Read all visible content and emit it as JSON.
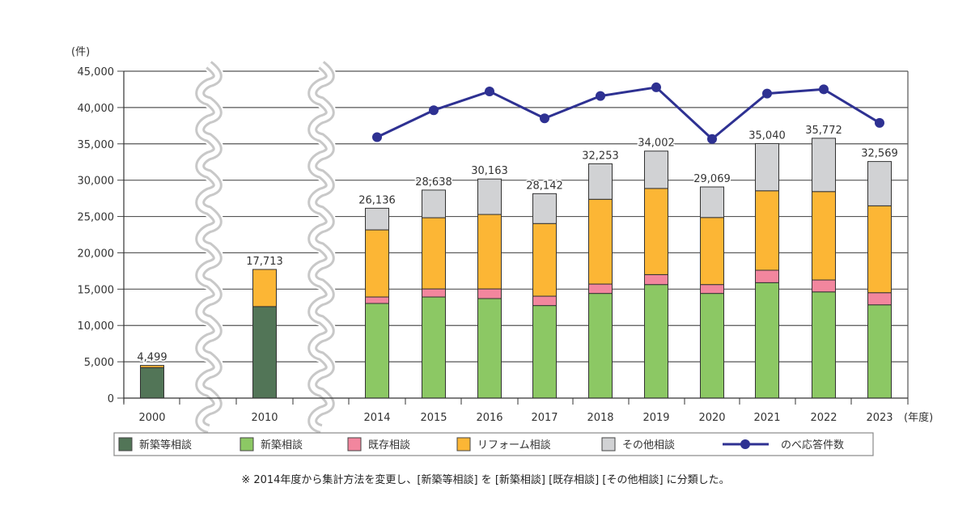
{
  "chart_data": {
    "type": "bar",
    "stacked": true,
    "title": "",
    "ylabel": "(件)",
    "xlabel": "(年度)",
    "ylim": [
      0,
      45000
    ],
    "yticks": [
      0,
      5000,
      10000,
      15000,
      20000,
      25000,
      30000,
      35000,
      40000,
      45000
    ],
    "ytick_labels": [
      "0",
      "5,000",
      "10,000",
      "15,000",
      "20,000",
      "25,000",
      "30,000",
      "35,000",
      "40,000",
      "45,000"
    ],
    "grid": true,
    "axis_breaks": [
      "between 2000 and 2010",
      "between 2010 and 2014"
    ],
    "categories": [
      "2000",
      "2010",
      "2014",
      "2015",
      "2016",
      "2017",
      "2018",
      "2019",
      "2020",
      "2021",
      "2022",
      "2023"
    ],
    "series": [
      {
        "name": "新築等相談",
        "kind": "bar",
        "color": "#527557",
        "values": [
          4200,
          12600,
          null,
          null,
          null,
          null,
          null,
          null,
          null,
          null,
          null,
          null
        ]
      },
      {
        "name": "新築相談",
        "kind": "bar",
        "color": "#8cc864",
        "values": [
          null,
          null,
          13030,
          13920,
          13700,
          12740,
          14410,
          15630,
          14410,
          15890,
          14620,
          12840
        ]
      },
      {
        "name": "既存相談",
        "kind": "bar",
        "color": "#f2869e",
        "values": [
          null,
          null,
          890,
          1110,
          1330,
          1290,
          1290,
          1370,
          1220,
          1710,
          1640,
          1670
        ]
      },
      {
        "name": "リフォーム相談",
        "kind": "bar",
        "color": "#fcb635",
        "values": [
          299,
          5113,
          9240,
          9800,
          10250,
          10000,
          11670,
          11860,
          9230,
          10940,
          12170,
          11960
        ]
      },
      {
        "name": "その他相談",
        "kind": "bar",
        "color": "#d1d2d4",
        "values": [
          null,
          null,
          2976,
          3808,
          4883,
          4112,
          4883,
          5142,
          4209,
          6500,
          7342,
          6099
        ]
      },
      {
        "name": "のべ応答件数",
        "kind": "line",
        "color": "#2e3192",
        "values": [
          null,
          null,
          35920,
          39630,
          42220,
          38510,
          41590,
          42780,
          35670,
          41920,
          42510,
          37890
        ]
      }
    ],
    "totals": [
      4499,
      17713,
      26136,
      28638,
      30163,
      28142,
      32253,
      34002,
      29069,
      35040,
      35772,
      32569
    ],
    "total_labels": [
      "4,499",
      "17,713",
      "26,136",
      "28,638",
      "30,163",
      "28,142",
      "32,253",
      "34,002",
      "29,069",
      "35,040",
      "35,772",
      "32,569"
    ],
    "legend": {
      "placement": "bottom",
      "entries": [
        "新築等相談",
        "新築相談",
        "既存相談",
        "リフォーム相談",
        "その他相談",
        "のべ応答件数"
      ]
    }
  },
  "note": "※ 2014年度から集計方法を変更し、[新築等相談] を [新築相談] [既存相談] [その他相談] に分類した。"
}
